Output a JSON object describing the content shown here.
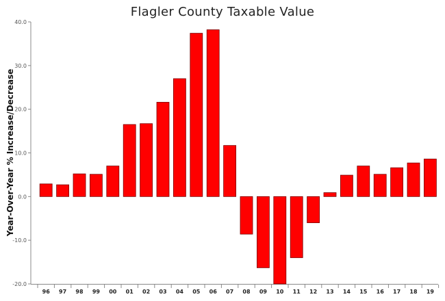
{
  "chart_data": {
    "type": "bar",
    "title": "Flagler County Taxable Value",
    "xlabel": "",
    "ylabel": "Year-Over-Year % Increase/Decrease",
    "categories": [
      "96",
      "97",
      "98",
      "99",
      "00",
      "01",
      "02",
      "03",
      "04",
      "05",
      "06",
      "07",
      "08",
      "09",
      "10",
      "11",
      "12",
      "13",
      "14",
      "15",
      "16",
      "17",
      "18",
      "19"
    ],
    "values": [
      2.9,
      2.7,
      5.2,
      5.1,
      7.0,
      16.5,
      16.7,
      21.6,
      27.0,
      37.4,
      38.2,
      11.7,
      -8.6,
      -16.3,
      -20.0,
      -14.0,
      -6.0,
      0.9,
      4.9,
      7.0,
      5.1,
      6.6,
      7.7,
      8.6
    ],
    "ylim": [
      -20,
      40
    ],
    "y_ticks": [
      "-20.0",
      "-10.0",
      "0.0",
      "10.0",
      "20.0",
      "30.0",
      "40.0"
    ],
    "bar_color": "#ff0000",
    "bar_outline": "#7a0000",
    "grid": false,
    "legend": "none"
  }
}
